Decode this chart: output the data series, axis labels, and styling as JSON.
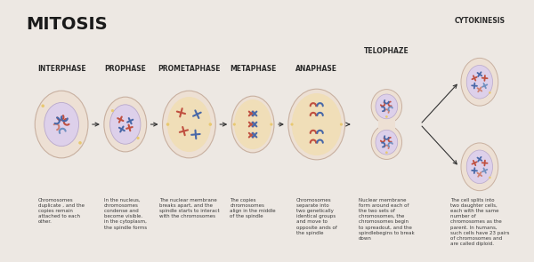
{
  "bg_color": "#ede8e3",
  "title": "MITOSIS",
  "title_fontsize": 14,
  "title_fontweight": "bold",
  "title_color": "#1a1a1a",
  "phases": [
    "INTERPHASE",
    "PROPHASE",
    "PROMETAPHASE",
    "METAPHASE",
    "ANAPHASE",
    "TELOPHAZE",
    "CYTOKINESIS"
  ],
  "phase_color": "#2a2a2a",
  "phase_fontsize": 5.5,
  "descriptions": [
    "Chromosomes\nduplicate , and the\ncopies remain\nattached to each\nother.",
    "In the nucleus,\nchromosomes\ncondense and\nbecome visible.\nin the cytoplasm,\nthe spindle forms",
    "The nuclear membrane\nbreaks apart, and the\nspindle starts to interact\nwith the chromosomes",
    "The copies\nchromosomes\nalign in the middle\nof the spindle",
    "Chromosomes\nseparate into\ntwo genetically\nidentical groups\nand move to\nopposite ands of\nthe spindle",
    "Nuclear membrane\nform around each of\nthe two sets of\nchromosomes, the\nchromosomes begin\nto spreadout, and the\nspindlebegins to break\ndown",
    "The cell splits into\ntwo daughter cells,\neach with the same\nnumber of\nchromosomes as the\nparent. In humans,\nsuch cells have 23 pairs\nof chromosomes and\nare called diploid."
  ],
  "desc_fontsize": 4.0,
  "desc_color": "#3a3a3a",
  "outer_cell_color": "#ede0d4",
  "outer_border_color": "#c8b0a0",
  "nucleus_color": "#ddd0ea",
  "nucleus_border_color": "#b8a8cc",
  "spindle_color": "#f0deb8",
  "chr_red": "#c05040",
  "chr_blue": "#4868a8",
  "chr_light_red": "#d08070",
  "chr_light_blue": "#7090c0",
  "centrosome_color": "#e8c870",
  "arrow_color": "#333333"
}
